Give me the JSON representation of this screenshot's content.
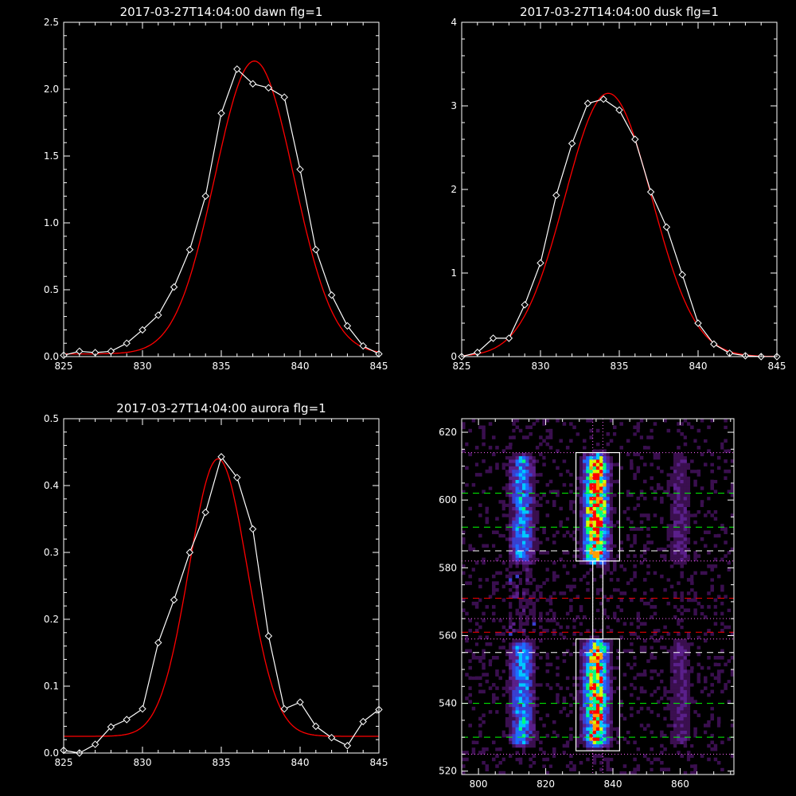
{
  "chart_data": [
    {
      "id": "dawn",
      "type": "line",
      "title": "2017-03-27T14:04:00 dawn flg=1",
      "xlim": [
        825,
        845
      ],
      "ylim": [
        0,
        2.5
      ],
      "xticks": [
        "825",
        "830",
        "835",
        "840",
        "845"
      ],
      "yticks": [
        "0.0",
        "0.5",
        "1.0",
        "1.5",
        "2.0",
        "2.5"
      ],
      "series": [
        {
          "kind": "observed",
          "color": "#ffffff",
          "marker": "diamond",
          "x": [
            825,
            826,
            827,
            828,
            829,
            830,
            831,
            832,
            833,
            834,
            835,
            836,
            837,
            838,
            839,
            840,
            841,
            842,
            843,
            844,
            845
          ],
          "y": [
            0.01,
            0.04,
            0.03,
            0.04,
            0.1,
            0.2,
            0.31,
            0.52,
            0.8,
            1.2,
            1.82,
            2.15,
            2.04,
            2.01,
            1.94,
            1.4,
            0.8,
            0.46,
            0.23,
            0.08,
            0.02
          ]
        },
        {
          "kind": "fit",
          "color": "#ff0000",
          "gauss": {
            "a": 2.19,
            "mu": 837.1,
            "sigma": 2.5,
            "c": 0.02
          }
        }
      ]
    },
    {
      "id": "dusk",
      "type": "line",
      "title": "2017-03-27T14:04:00 dusk flg=1",
      "xlim": [
        825,
        845
      ],
      "ylim": [
        0,
        4
      ],
      "xticks": [
        "825",
        "830",
        "835",
        "840",
        "845"
      ],
      "yticks": [
        "0",
        "1",
        "2",
        "3",
        "4"
      ],
      "series": [
        {
          "kind": "observed",
          "color": "#ffffff",
          "marker": "diamond",
          "x": [
            825,
            826,
            827,
            828,
            829,
            830,
            831,
            832,
            833,
            834,
            835,
            836,
            837,
            838,
            839,
            840,
            841,
            842,
            843,
            844,
            845
          ],
          "y": [
            0.0,
            0.05,
            0.22,
            0.22,
            0.62,
            1.12,
            1.93,
            2.55,
            3.03,
            3.08,
            2.95,
            2.6,
            1.97,
            1.55,
            0.98,
            0.4,
            0.15,
            0.04,
            0.01,
            0.0,
            0.0
          ]
        },
        {
          "kind": "fit",
          "color": "#ff0000",
          "gauss": {
            "a": 3.15,
            "mu": 834.3,
            "sigma": 2.75,
            "c": 0.0
          }
        }
      ]
    },
    {
      "id": "aurora",
      "type": "line",
      "title": "2017-03-27T14:04:00 aurora flg=1",
      "xlim": [
        825,
        845
      ],
      "ylim": [
        0,
        0.5
      ],
      "xticks": [
        "825",
        "830",
        "835",
        "840",
        "845"
      ],
      "yticks": [
        "0.0",
        "0.1",
        "0.2",
        "0.3",
        "0.4",
        "0.5"
      ],
      "series": [
        {
          "kind": "observed",
          "color": "#ffffff",
          "marker": "diamond",
          "x": [
            825,
            826,
            827,
            828,
            829,
            830,
            831,
            832,
            833,
            834,
            835,
            836,
            837,
            838,
            839,
            840,
            841,
            842,
            843,
            844,
            845
          ],
          "y": [
            0.004,
            0.0,
            0.013,
            0.039,
            0.05,
            0.066,
            0.165,
            0.229,
            0.3,
            0.36,
            0.443,
            0.412,
            0.335,
            0.175,
            0.066,
            0.076,
            0.04,
            0.023,
            0.011,
            0.047,
            0.065
          ]
        },
        {
          "kind": "fit",
          "color": "#ff0000",
          "gauss": {
            "a": 0.415,
            "mu": 834.8,
            "sigma": 1.85,
            "c": 0.025
          }
        }
      ]
    },
    {
      "id": "image",
      "type": "heatmap",
      "title": "",
      "xlim": [
        795,
        876
      ],
      "ylim": [
        519,
        624
      ],
      "xticks": [
        "800",
        "820",
        "840",
        "860"
      ],
      "xtick_values": [
        800,
        820,
        840,
        860
      ],
      "yticks": [
        "520",
        "540",
        "560",
        "580",
        "600",
        "620"
      ],
      "ytick_values": [
        520,
        540,
        560,
        580,
        600,
        620
      ],
      "colormap": [
        "#000000",
        "#3a0f4f",
        "#5a1f8a",
        "#3a3fd0",
        "#1e6cff",
        "#00c8ff",
        "#00ff7f",
        "#d6ff00",
        "#ffa000",
        "#ff0000"
      ],
      "emission_columns": [
        {
          "x": 813,
          "halfwidth": 4,
          "amp": 0.55
        },
        {
          "x": 835,
          "halfwidth": 4,
          "amp": 1.0
        },
        {
          "x": 860,
          "halfwidth": 4,
          "amp": 0.25
        }
      ],
      "emission_rows": [
        {
          "y_min": 583,
          "y_max": 612
        },
        {
          "y_min": 529,
          "y_max": 557
        }
      ],
      "boxes": [
        {
          "x_min": 829,
          "x_max": 842,
          "y_min": 582,
          "y_max": 614,
          "color": "#ffffff"
        },
        {
          "x_min": 834,
          "x_max": 837,
          "y_min": 559,
          "y_max": 582,
          "color": "#ffffff"
        },
        {
          "x_min": 829,
          "x_max": 842,
          "y_min": 526,
          "y_max": 559,
          "color": "#ffffff"
        }
      ],
      "hlines": [
        {
          "y": 614,
          "color": "#ff66ff",
          "style": "dotted"
        },
        {
          "y": 602,
          "color": "#00ff00",
          "style": "dashed"
        },
        {
          "y": 592,
          "color": "#00ff00",
          "style": "dashed"
        },
        {
          "y": 585,
          "color": "#ffffff",
          "style": "dashed"
        },
        {
          "y": 582,
          "color": "#ff66ff",
          "style": "dotted"
        },
        {
          "y": 571,
          "color": "#ff0000",
          "style": "dashed"
        },
        {
          "y": 565,
          "color": "#ff66ff",
          "style": "dotted"
        },
        {
          "y": 561,
          "color": "#ff0000",
          "style": "dashed"
        },
        {
          "y": 559,
          "color": "#ff66ff",
          "style": "dotted"
        },
        {
          "y": 555,
          "color": "#ffffff",
          "style": "dashed"
        },
        {
          "y": 540,
          "color": "#00ff00",
          "style": "dashed"
        },
        {
          "y": 530,
          "color": "#00ff00",
          "style": "dashed"
        },
        {
          "y": 525,
          "color": "#ff66ff",
          "style": "dotted"
        }
      ],
      "vlines": [
        {
          "x": 834,
          "color": "#ff66ff",
          "style": "dotted"
        },
        {
          "x": 837,
          "color": "#ff66ff",
          "style": "dotted"
        }
      ]
    }
  ]
}
